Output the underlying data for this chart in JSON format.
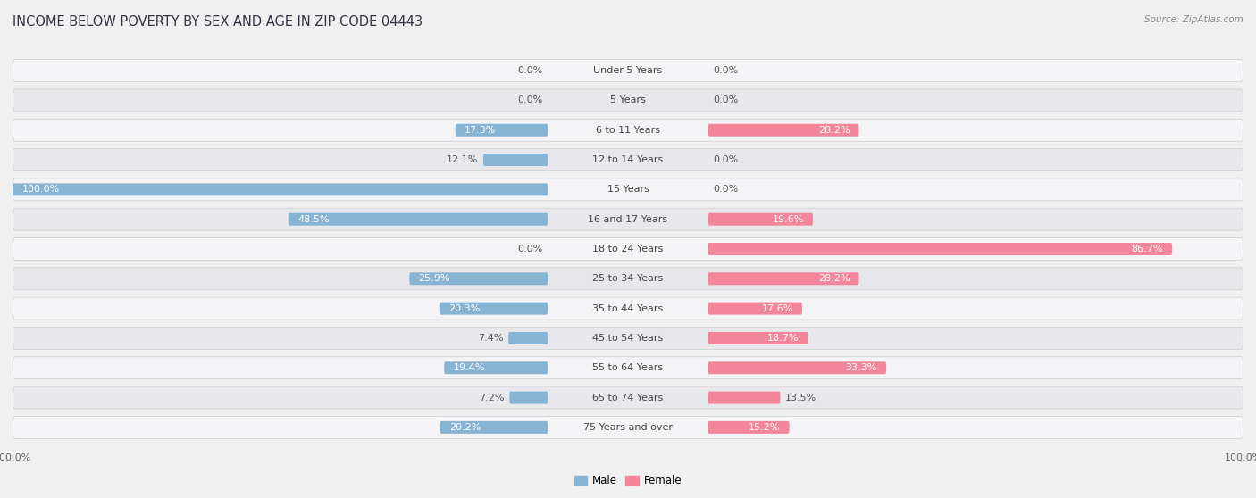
{
  "title": "INCOME BELOW POVERTY BY SEX AND AGE IN ZIP CODE 04443",
  "source": "Source: ZipAtlas.com",
  "categories": [
    "Under 5 Years",
    "5 Years",
    "6 to 11 Years",
    "12 to 14 Years",
    "15 Years",
    "16 and 17 Years",
    "18 to 24 Years",
    "25 to 34 Years",
    "35 to 44 Years",
    "45 to 54 Years",
    "55 to 64 Years",
    "65 to 74 Years",
    "75 Years and over"
  ],
  "male": [
    0.0,
    0.0,
    17.3,
    12.1,
    100.0,
    48.5,
    0.0,
    25.9,
    20.3,
    7.4,
    19.4,
    7.2,
    20.2
  ],
  "female": [
    0.0,
    0.0,
    28.2,
    0.0,
    0.0,
    19.6,
    86.7,
    28.2,
    17.6,
    18.7,
    33.3,
    13.5,
    15.2
  ],
  "male_color": "#88b4d4",
  "female_color": "#f4869c",
  "male_color_light": "#b8d3e8",
  "female_color_light": "#f8b4c4",
  "male_label": "Male",
  "female_label": "Female",
  "max_value": 100.0,
  "bg_color": "#f0f0f0",
  "row_color_odd": "#e8e8ec",
  "row_color_even": "#f4f4f7",
  "title_fontsize": 10.5,
  "label_fontsize": 8.0,
  "value_fontsize": 8.0,
  "tick_fontsize": 8.0
}
